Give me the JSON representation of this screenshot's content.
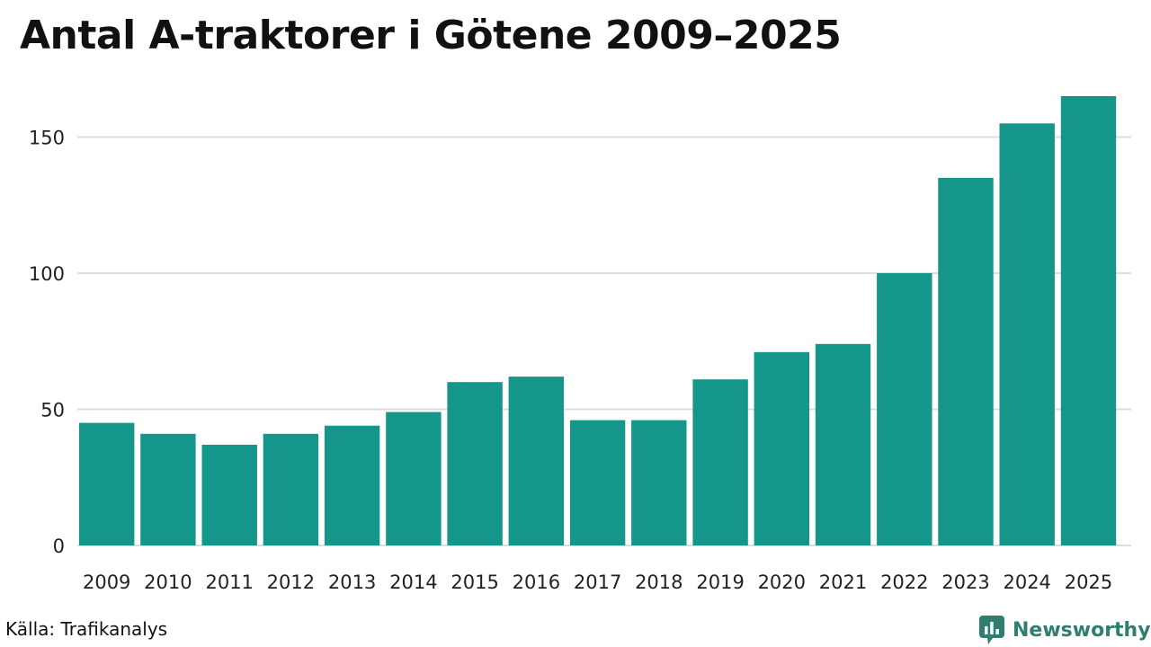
{
  "chart_data": {
    "type": "bar",
    "title": "Antal A-traktorer i Götene 2009–2025",
    "xlabel": "",
    "ylabel": "",
    "categories": [
      "2009",
      "2010",
      "2011",
      "2012",
      "2013",
      "2014",
      "2015",
      "2016",
      "2017",
      "2018",
      "2019",
      "2020",
      "2021",
      "2022",
      "2023",
      "2024",
      "2025"
    ],
    "values": [
      45,
      41,
      37,
      41,
      44,
      49,
      60,
      62,
      46,
      46,
      61,
      71,
      74,
      100,
      135,
      155,
      165
    ],
    "ylim": [
      0,
      165
    ],
    "yticks": [
      0,
      50,
      100,
      150
    ],
    "grid": true,
    "bar_color": "#14968a"
  },
  "footer": {
    "source": "Källa: Trafikanalys",
    "brand": "Newsworthy",
    "brand_icon": "newsworthy-logo-icon",
    "brand_color": "#2f7f6f"
  }
}
